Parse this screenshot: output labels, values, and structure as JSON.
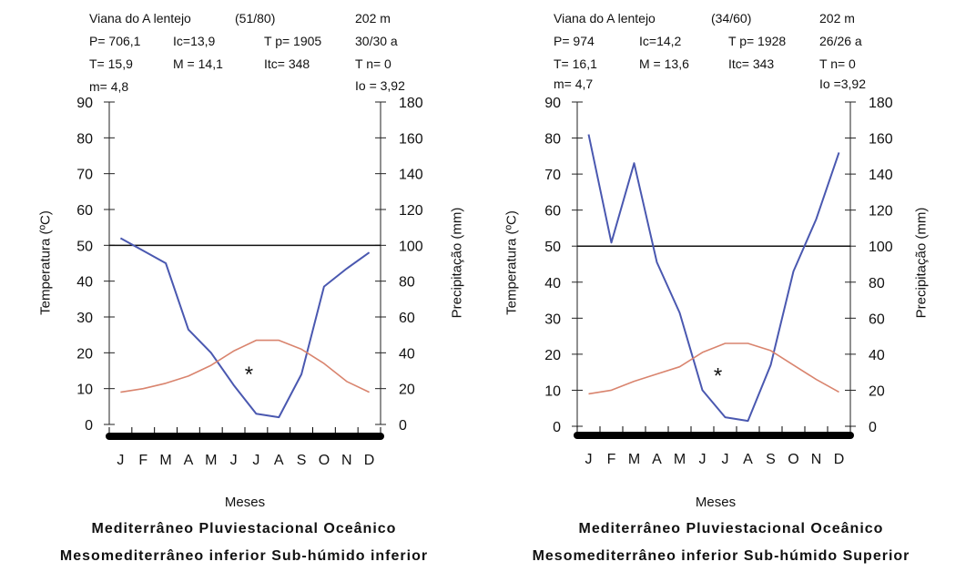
{
  "colors": {
    "precip": "#4a58b0",
    "temp": "#d9846e",
    "axis": "#222222",
    "ref": "#111111"
  },
  "charts": [
    {
      "header": {
        "station": "Viana do A lentejo",
        "code": "(51/80)",
        "altitude": "202 m",
        "r1": [
          "P= 706,1",
          "Ic=13,9",
          "T p= 1905",
          "30/30 a"
        ],
        "r2": [
          "T= 15,9",
          "M = 14,1",
          "Itc= 348",
          "T n= 0"
        ],
        "m": "m= 4,8",
        "io": "Io = 3,92"
      },
      "mark": "*",
      "xlabel": "Meses",
      "ylabel_left": "Temperatura (ºC)",
      "ylabel_right": "Precipitação (mm)",
      "caption1": "Mediterrâneo Pluviestacional Oceânico",
      "caption2": "Mesomediterrâneo inferior Sub-húmido inferior"
    },
    {
      "header": {
        "station": "Viana do A lentejo",
        "code": "(34/60)",
        "altitude": "202 m",
        "r1": [
          "P= 974",
          "Ic=14,2",
          "T p= 1928",
          "26/26 a"
        ],
        "r2": [
          "T= 16,1",
          "M = 13,6",
          "Itc= 343",
          "T n= 0"
        ],
        "m": "m= 4,7",
        "io": "Io =3,92"
      },
      "mark": "*",
      "xlabel": "Meses",
      "ylabel_left": "Temperatura (ºC)",
      "ylabel_right": "Precipitação (mm)",
      "caption1": "Mediterrâneo Pluviestacional Oceânico",
      "caption2": "Mesomediterrâneo inferior Sub-húmido Superior"
    }
  ],
  "chart_data": [
    {
      "type": "line",
      "categories": [
        "J",
        "F",
        "M",
        "A",
        "M",
        "J",
        "J",
        "A",
        "S",
        "O",
        "N",
        "D"
      ],
      "ylabel": "Temperatura (ºC)",
      "ylim": [
        0,
        90
      ],
      "y2label": "Precipitação (mm)",
      "y2lim": [
        0,
        180
      ],
      "y_ticks": [
        "0",
        "10",
        "20",
        "30",
        "40",
        "50",
        "60",
        "70",
        "80",
        "90"
      ],
      "y2_ticks": [
        "0",
        "20",
        "40",
        "60",
        "80",
        "100",
        "120",
        "140",
        "160",
        "180"
      ],
      "reference_line": {
        "axis": "y",
        "value": 50
      },
      "series": [
        {
          "axis": "right",
          "values": [
            104,
            97,
            90,
            53,
            40,
            22,
            6,
            4,
            28,
            77,
            87,
            96
          ]
        },
        {
          "axis": "left",
          "values": [
            9,
            10,
            11.5,
            13.5,
            16.5,
            20.5,
            23.5,
            23.5,
            21,
            17,
            12,
            9
          ]
        }
      ]
    },
    {
      "type": "line",
      "categories": [
        "J",
        "F",
        "M",
        "A",
        "M",
        "J",
        "J",
        "A",
        "S",
        "O",
        "N",
        "D"
      ],
      "ylabel": "Temperatura (ºC)",
      "ylim": [
        0,
        90
      ],
      "y2label": "Precipitação (mm)",
      "y2lim": [
        0,
        180
      ],
      "y_ticks": [
        "0",
        "10",
        "20",
        "30",
        "40",
        "50",
        "60",
        "70",
        "80",
        "90"
      ],
      "y2_ticks": [
        "0",
        "20",
        "40",
        "60",
        "80",
        "100",
        "120",
        "140",
        "160",
        "180"
      ],
      "reference_line": {
        "axis": "y",
        "value": 50
      },
      "series": [
        {
          "axis": "right",
          "values": [
            162,
            102,
            146,
            91,
            63,
            20,
            5,
            3,
            34,
            86,
            115,
            152
          ]
        },
        {
          "axis": "left",
          "values": [
            9,
            10,
            12.5,
            14.5,
            16.5,
            20.5,
            23,
            23,
            21,
            17,
            13,
            9.5
          ]
        }
      ]
    }
  ]
}
